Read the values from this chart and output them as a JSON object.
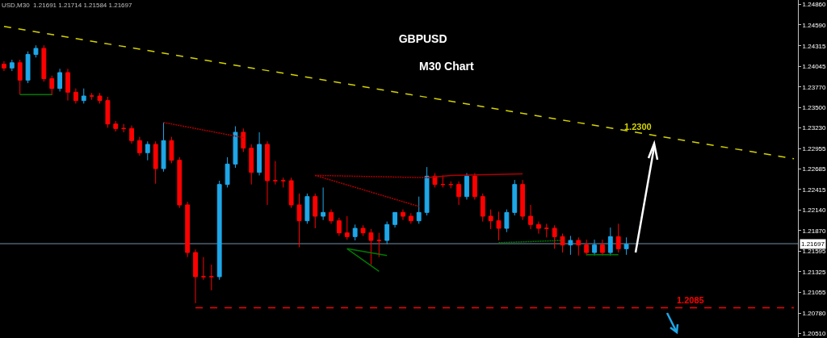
{
  "chart_data": {
    "type": "candlestick",
    "title": "GBPUSD",
    "subtitle": "M30 Chart",
    "annotations": [
      "USD,M30  1.21691 1.21714 1.21584 1.21697",
      "1.2300",
      {
        "text": "1.2085",
        "y": 1.2087
      }
    ],
    "categories": [
      null,
      null,
      null,
      null,
      null,
      null,
      null,
      null,
      null,
      null,
      null,
      null,
      null,
      null,
      null,
      null,
      null,
      null,
      null,
      null,
      null,
      null,
      null,
      null,
      null,
      null,
      null,
      null,
      null,
      null,
      null,
      null,
      null,
      null,
      null,
      null,
      null,
      null,
      null,
      null,
      null,
      null,
      null,
      null,
      null,
      null,
      null,
      null,
      null,
      null,
      null,
      null,
      null,
      null,
      null,
      null,
      null,
      null,
      null,
      null,
      null,
      null,
      null,
      null,
      null,
      null,
      null,
      null,
      null,
      null,
      null,
      null,
      null,
      null,
      null,
      null,
      null,
      null,
      null,
      null,
      null,
      null,
      null,
      null,
      null,
      null,
      null,
      null,
      null,
      null,
      null,
      null,
      null,
      null,
      null,
      null,
      null,
      null,
      null,
      null
    ],
    "colors": [
      "#ff0000",
      "#1ea7e8",
      "#ff0000",
      "#1ea7e8",
      "#1ea7e8",
      "#ff0000",
      "#ff0000",
      "#1ea7e8",
      "#ff0000",
      "#ff0000",
      "#1ea7e8",
      "#ff0000",
      "#ff0000",
      "#ff0000",
      "#ff0000",
      "#ff0000",
      "#ff0000",
      "#ff0000",
      "#1ea7e8",
      "#ff0000",
      "#1ea7e8",
      "#ff0000",
      "#ff0000",
      "#ff0000",
      "#ff0000",
      "#ff0000",
      "#ff0000",
      "#1ea7e8",
      "#1ea7e8",
      "#1ea7e8",
      "#ff0000",
      "#ff0000",
      "#1ea7e8",
      "#ff0000",
      "#ff0000",
      "#ff0000",
      "#ff0000",
      "#ff0000",
      "#1ea7e8",
      "#ff0000",
      "#1ea7e8",
      "#ff0000",
      "#ff0000",
      "#ff0000",
      "#1ea7e8",
      "#ff0000",
      "#ff0000",
      "#ff0000",
      "#1ea7e8",
      "#1ea7e8",
      "#ff0000",
      "#ff0000",
      "#1ea7e8",
      "#1ea7e8",
      "#ff0000",
      "#ff0000",
      "#ff0000",
      "#ff0000",
      "#1ea7e8",
      "#ff0000",
      "#ff0000",
      "#ff0000",
      "#ff0000",
      "#1ea7e8",
      "#1ea7e8",
      "#ff0000",
      "#ff0000",
      "#ff0000",
      "#ff0000",
      "#ff0000",
      "#ff0000",
      "#1ea7e8",
      "#ff0000",
      "#ff0000",
      "#1ea7e8",
      "#ff0000",
      "#1ea7e8",
      "#ff0000",
      "#1ea7e8",
      null,
      null,
      null,
      null,
      null,
      null,
      null,
      null,
      null,
      null,
      null,
      null,
      null,
      null,
      null,
      null,
      null,
      null,
      null,
      null,
      null
    ],
    "ohlc": [
      [
        1.2407,
        1.2411,
        1.2398,
        1.2402
      ],
      [
        1.2402,
        1.2413,
        1.2398,
        1.2409
      ],
      [
        1.2409,
        1.2413,
        1.2367,
        1.2386
      ],
      [
        1.2386,
        1.2424,
        1.2382,
        1.242
      ],
      [
        1.242,
        1.2432,
        1.2416,
        1.2428
      ],
      [
        1.2428,
        1.2432,
        1.2384,
        1.2388
      ],
      [
        1.2388,
        1.2392,
        1.2366,
        1.2375
      ],
      [
        1.2375,
        1.2401,
        1.2371,
        1.2396
      ],
      [
        1.2396,
        1.2401,
        1.2359,
        1.237
      ],
      [
        1.237,
        1.2375,
        1.2355,
        1.2359
      ],
      [
        1.2359,
        1.2375,
        1.2355,
        1.2365
      ],
      [
        1.2365,
        1.2369,
        1.236,
        1.2365
      ],
      [
        1.2365,
        1.2369,
        1.2355,
        1.2359
      ],
      [
        1.2359,
        1.2364,
        1.2323,
        1.2328
      ],
      [
        1.2328,
        1.2332,
        1.2318,
        1.2322
      ],
      [
        1.2322,
        1.2328,
        1.2317,
        1.2322
      ],
      [
        1.2322,
        1.2326,
        1.2302,
        1.2306
      ],
      [
        1.2306,
        1.2311,
        1.2286,
        1.229
      ],
      [
        1.229,
        1.2305,
        1.228,
        1.2301
      ],
      [
        1.2301,
        1.2305,
        1.2249,
        1.2269
      ],
      [
        1.2269,
        1.233,
        1.2265,
        1.2306
      ],
      [
        1.2306,
        1.2311,
        1.2276,
        1.228
      ],
      [
        1.228,
        1.2284,
        1.2217,
        1.2221
      ],
      [
        1.2221,
        1.2225,
        1.2152,
        1.2158
      ],
      [
        1.2158,
        1.2162,
        1.2091,
        1.2126
      ],
      [
        1.2126,
        1.2152,
        1.2122,
        1.2126
      ],
      [
        1.2126,
        1.2142,
        1.2108,
        1.2126
      ],
      [
        1.2126,
        1.2253,
        1.2122,
        1.2248
      ],
      [
        1.2248,
        1.2284,
        1.2244,
        1.2275
      ],
      [
        1.2275,
        1.2325,
        1.227,
        1.2317
      ],
      [
        1.2317,
        1.2322,
        1.2291,
        1.2296
      ],
      [
        1.2296,
        1.2301,
        1.2248,
        1.2264
      ],
      [
        1.2264,
        1.2317,
        1.226,
        1.2301
      ],
      [
        1.2301,
        1.2305,
        1.2221,
        1.2253
      ],
      [
        1.2253,
        1.2279,
        1.2248,
        1.2253
      ],
      [
        1.2253,
        1.2257,
        1.2244,
        1.2253
      ],
      [
        1.2253,
        1.2257,
        1.2217,
        1.2221
      ],
      [
        1.2221,
        1.2236,
        1.2165,
        1.22
      ],
      [
        1.22,
        1.2236,
        1.2196,
        1.2232
      ],
      [
        1.2232,
        1.2236,
        1.219,
        1.2206
      ],
      [
        1.2206,
        1.2244,
        1.2201,
        1.2211
      ],
      [
        1.2211,
        1.2215,
        1.2196,
        1.22
      ],
      [
        1.22,
        1.2204,
        1.218,
        1.2184
      ],
      [
        1.2184,
        1.2206,
        1.2175,
        1.2179
      ],
      [
        1.2179,
        1.2195,
        1.2174,
        1.219
      ],
      [
        1.219,
        1.2194,
        1.218,
        1.2184
      ],
      [
        1.2184,
        1.2189,
        1.2142,
        1.2174
      ],
      [
        1.2174,
        1.2184,
        1.2152,
        1.2174
      ],
      [
        1.2174,
        1.2199,
        1.2169,
        1.2195
      ],
      [
        1.2195,
        1.2211,
        1.2191,
        1.2211
      ],
      [
        1.2211,
        1.2215,
        1.2201,
        1.2206
      ],
      [
        1.2206,
        1.221,
        1.2196,
        1.22
      ],
      [
        1.22,
        1.2232,
        1.2196,
        1.2211
      ],
      [
        1.2211,
        1.2271,
        1.2207,
        1.2259
      ],
      [
        1.2259,
        1.2263,
        1.2244,
        1.2248
      ],
      [
        1.2248,
        1.226,
        1.2244,
        1.2248
      ],
      [
        1.2248,
        1.2252,
        1.2243,
        1.2248
      ],
      [
        1.2248,
        1.2252,
        1.2221,
        1.2232
      ],
      [
        1.2232,
        1.2263,
        1.2228,
        1.2259
      ],
      [
        1.2259,
        1.2263,
        1.2228,
        1.2232
      ],
      [
        1.2232,
        1.2236,
        1.2199,
        1.2206
      ],
      [
        1.2206,
        1.2215,
        1.2189,
        1.22
      ],
      [
        1.22,
        1.2212,
        1.2174,
        1.219
      ],
      [
        1.219,
        1.2215,
        1.2185,
        1.2211
      ],
      [
        1.2211,
        1.2254,
        1.2207,
        1.2248
      ],
      [
        1.2248,
        1.2254,
        1.2201,
        1.2206
      ],
      [
        1.2206,
        1.2221,
        1.2189,
        1.2195
      ],
      [
        1.2195,
        1.2199,
        1.2183,
        1.219
      ],
      [
        1.219,
        1.2196,
        1.2178,
        1.219
      ],
      [
        1.219,
        1.2194,
        1.2163,
        1.2179
      ],
      [
        1.2179,
        1.2183,
        1.2158,
        1.2168
      ],
      [
        1.2168,
        1.218,
        1.2155,
        1.2174
      ],
      [
        1.2174,
        1.2178,
        1.2154,
        1.2168
      ],
      [
        1.2168,
        1.2175,
        1.2154,
        1.2158
      ],
      [
        1.2158,
        1.2175,
        1.2154,
        1.2168
      ],
      [
        1.2168,
        1.2175,
        1.2154,
        1.2158
      ],
      [
        1.2158,
        1.2191,
        1.2154,
        1.2179
      ],
      [
        1.2179,
        1.2196,
        1.2158,
        1.2163
      ],
      [
        1.2163,
        1.2178,
        1.2155,
        1.2169
      ],
      null,
      null,
      null,
      null,
      null,
      null,
      null,
      null,
      null,
      null,
      null,
      null,
      null,
      null,
      null,
      null,
      null,
      null,
      null,
      null,
      null
    ],
    "series": [
      {
        "type": "line",
        "color": "#d4d400",
        "line_style": "dashed",
        "values": [
          1.2457,
          null,
          null,
          null,
          null,
          null,
          null,
          null,
          null,
          null,
          null,
          null,
          null,
          null,
          null,
          null,
          null,
          null,
          null,
          null,
          null,
          null,
          null,
          null,
          null,
          null,
          null,
          null,
          null,
          null,
          null,
          null,
          null,
          null,
          null,
          null,
          null,
          null,
          null,
          null,
          null,
          null,
          null,
          null,
          null,
          null,
          null,
          null,
          null,
          null,
          null,
          null,
          null,
          null,
          null,
          null,
          null,
          null,
          null,
          null,
          null,
          null,
          null,
          null,
          null,
          null,
          null,
          null,
          null,
          null,
          null,
          null,
          null,
          null,
          null,
          null,
          null,
          null,
          null,
          null,
          null,
          null,
          null,
          null,
          null,
          null,
          null,
          null,
          null,
          null,
          null,
          null,
          null,
          null,
          null,
          null,
          null,
          null,
          null,
          1.2282
        ]
      },
      {
        "type": "line",
        "color": "#ff0000",
        "line_style": "dashed",
        "values": [
          null,
          null,
          null,
          null,
          null,
          null,
          null,
          null,
          null,
          null,
          null,
          null,
          null,
          null,
          null,
          null,
          null,
          null,
          null,
          null,
          null,
          null,
          null,
          null,
          1.2085,
          null,
          null,
          null,
          null,
          null,
          null,
          null,
          null,
          null,
          null,
          null,
          null,
          null,
          null,
          null,
          null,
          null,
          null,
          null,
          null,
          null,
          null,
          null,
          null,
          null,
          null,
          null,
          null,
          null,
          null,
          null,
          null,
          null,
          null,
          null,
          null,
          null,
          null,
          null,
          null,
          null,
          null,
          null,
          null,
          null,
          null,
          null,
          null,
          null,
          null,
          null,
          null,
          null,
          null,
          null,
          null,
          null,
          null,
          null,
          null,
          null,
          null,
          null,
          null,
          null,
          null,
          null,
          null,
          null,
          null,
          null,
          null,
          null,
          null,
          1.2085
        ]
      },
      {
        "type": "line",
        "color": "#007a00",
        "line_style": "solid",
        "values": [
          null,
          null,
          1.2367,
          null,
          null,
          null,
          1.2367,
          null,
          null,
          null,
          null,
          null,
          null,
          null,
          null,
          null,
          null,
          null,
          null,
          null,
          null,
          null,
          null,
          null,
          null,
          null,
          null,
          null,
          null,
          null,
          null,
          null,
          null,
          null,
          null,
          null,
          null,
          null,
          null,
          null,
          null,
          null,
          null,
          null,
          null,
          null,
          null,
          null,
          null,
          null,
          null,
          null,
          null,
          null,
          null,
          null,
          null,
          null,
          null,
          null,
          null,
          null,
          null,
          null,
          null,
          null,
          null,
          null,
          null,
          null,
          null,
          null,
          null,
          null,
          null,
          null,
          null,
          null,
          null,
          null,
          null,
          null,
          null,
          null,
          null,
          null,
          null,
          null,
          null,
          null,
          null,
          null,
          null,
          null,
          null,
          null,
          null,
          null,
          null,
          null
        ]
      },
      {
        "type": "line",
        "color": "#b00000",
        "line_style": "dotted",
        "values": [
          null,
          null,
          null,
          null,
          null,
          null,
          null,
          null,
          null,
          null,
          null,
          null,
          null,
          null,
          null,
          null,
          null,
          null,
          null,
          null,
          1.233,
          null,
          null,
          null,
          null,
          null,
          null,
          null,
          null,
          null,
          1.231,
          null,
          null,
          null,
          null,
          null,
          null,
          null,
          null,
          null,
          null,
          null,
          null,
          null,
          null,
          null,
          null,
          null,
          null,
          null,
          null,
          null,
          null,
          null,
          null,
          null,
          null,
          null,
          null,
          null,
          null,
          null,
          null,
          null,
          null,
          null,
          null,
          null,
          null,
          null,
          null,
          null,
          null,
          null,
          null,
          null,
          null,
          null,
          null,
          null,
          null,
          null,
          null,
          null,
          null,
          null,
          null,
          null,
          null,
          null,
          null,
          null,
          null,
          null,
          null,
          null,
          null,
          null,
          null,
          null
        ]
      },
      {
        "type": "line",
        "color": "#b00000",
        "line_style": "dotted",
        "values": [
          null,
          null,
          null,
          null,
          null,
          null,
          null,
          null,
          null,
          null,
          null,
          null,
          null,
          null,
          null,
          null,
          null,
          null,
          null,
          null,
          null,
          null,
          null,
          null,
          null,
          null,
          null,
          null,
          null,
          null,
          null,
          null,
          null,
          null,
          null,
          null,
          null,
          null,
          null,
          1.226,
          null,
          null,
          null,
          null,
          null,
          null,
          null,
          null,
          null,
          null,
          null,
          null,
          null,
          1.2257,
          null,
          null,
          null,
          null,
          null,
          null,
          null,
          null,
          null,
          null,
          null,
          null,
          null,
          null,
          null,
          null,
          null,
          null,
          null,
          null,
          null,
          null,
          null,
          null,
          null,
          null,
          null,
          null,
          null,
          null,
          null,
          null,
          null,
          null,
          null,
          null,
          null,
          null,
          null,
          null,
          null,
          null,
          null,
          null,
          null,
          null
        ]
      },
      {
        "type": "line",
        "color": "#b00000",
        "line_style": "dotted",
        "values": [
          null,
          null,
          null,
          null,
          null,
          null,
          null,
          null,
          null,
          null,
          null,
          null,
          null,
          null,
          null,
          null,
          null,
          null,
          null,
          null,
          null,
          null,
          null,
          null,
          null,
          null,
          null,
          null,
          null,
          null,
          null,
          null,
          null,
          null,
          null,
          null,
          null,
          null,
          null,
          1.226,
          null,
          null,
          null,
          null,
          null,
          null,
          null,
          null,
          null,
          null,
          null,
          null,
          1.2219,
          null,
          null,
          null,
          null,
          null,
          null,
          null,
          null,
          null,
          null,
          null,
          null,
          null,
          null,
          null,
          null,
          null,
          null,
          null,
          null,
          null,
          null,
          null,
          null,
          null,
          null,
          null,
          null,
          null,
          null,
          null,
          null,
          null,
          null,
          null,
          null,
          null,
          null,
          null,
          null,
          null,
          null,
          null,
          null,
          null,
          null,
          null
        ]
      },
      {
        "type": "line",
        "color": "#b00000",
        "line_style": "solid",
        "values": [
          null,
          null,
          null,
          null,
          null,
          null,
          null,
          null,
          null,
          null,
          null,
          null,
          null,
          null,
          null,
          null,
          null,
          null,
          null,
          null,
          null,
          null,
          null,
          null,
          null,
          null,
          null,
          null,
          null,
          null,
          null,
          null,
          null,
          null,
          null,
          null,
          null,
          null,
          null,
          null,
          null,
          null,
          null,
          null,
          null,
          null,
          null,
          null,
          null,
          null,
          null,
          null,
          null,
          1.2257,
          null,
          null,
          1.226,
          null,
          null,
          null,
          null,
          null,
          null,
          null,
          null,
          1.2262,
          null,
          null,
          null,
          null,
          null,
          null,
          null,
          null,
          null,
          null,
          null,
          null,
          null,
          null,
          null,
          null,
          null,
          null,
          null,
          null,
          null,
          null,
          null,
          null,
          null,
          null,
          null,
          null,
          null,
          null,
          null,
          null,
          null,
          null
        ]
      },
      {
        "type": "line",
        "color": "#007a00",
        "line_style": "solid",
        "values": [
          null,
          null,
          null,
          null,
          null,
          null,
          null,
          null,
          null,
          null,
          null,
          null,
          null,
          null,
          null,
          null,
          null,
          null,
          null,
          null,
          null,
          null,
          null,
          null,
          null,
          null,
          null,
          null,
          null,
          null,
          null,
          null,
          null,
          null,
          null,
          null,
          null,
          null,
          null,
          null,
          null,
          null,
          null,
          1.2163,
          null,
          null,
          null,
          1.2133,
          null,
          null,
          null,
          null,
          null,
          null,
          null,
          null,
          null,
          null,
          null,
          null,
          null,
          null,
          null,
          null,
          null,
          null,
          null,
          null,
          null,
          null,
          null,
          null,
          null,
          null,
          null,
          null,
          null,
          null,
          null,
          null,
          null,
          null,
          null,
          null,
          null,
          null,
          null,
          null,
          null,
          null,
          null,
          null,
          null,
          null,
          null,
          null,
          null,
          null,
          null,
          null
        ]
      },
      {
        "type": "line",
        "color": "#007a00",
        "line_style": "solid",
        "values": [
          null,
          null,
          null,
          null,
          null,
          null,
          null,
          null,
          null,
          null,
          null,
          null,
          null,
          null,
          null,
          null,
          null,
          null,
          null,
          null,
          null,
          null,
          null,
          null,
          null,
          null,
          null,
          null,
          null,
          null,
          null,
          null,
          null,
          null,
          null,
          null,
          null,
          null,
          null,
          null,
          null,
          null,
          null,
          1.2163,
          null,
          null,
          null,
          null,
          1.2154,
          null,
          null,
          null,
          null,
          null,
          null,
          null,
          null,
          null,
          null,
          null,
          null,
          null,
          null,
          null,
          null,
          null,
          null,
          null,
          null,
          null,
          null,
          null,
          null,
          null,
          null,
          null,
          null,
          null,
          null,
          null,
          null,
          null,
          null,
          null,
          null,
          null,
          null,
          null,
          null,
          null,
          null,
          null,
          null,
          null,
          null,
          null,
          null,
          null,
          null,
          null
        ]
      },
      {
        "type": "line",
        "color": "#007a00",
        "line_style": "dotted",
        "values": [
          null,
          null,
          null,
          null,
          null,
          null,
          null,
          null,
          null,
          null,
          null,
          null,
          null,
          null,
          null,
          null,
          null,
          null,
          null,
          null,
          null,
          null,
          null,
          null,
          null,
          null,
          null,
          null,
          null,
          null,
          null,
          null,
          null,
          null,
          null,
          null,
          null,
          null,
          null,
          null,
          null,
          null,
          null,
          null,
          null,
          null,
          null,
          null,
          null,
          null,
          null,
          null,
          null,
          null,
          null,
          null,
          null,
          null,
          null,
          null,
          null,
          null,
          1.2171,
          null,
          null,
          null,
          null,
          null,
          null,
          null,
          1.2174,
          null,
          null,
          null,
          null,
          null,
          null,
          null,
          null,
          null,
          null,
          null,
          null,
          null,
          null,
          null,
          null,
          null,
          null,
          null,
          null,
          null,
          null,
          null,
          null,
          null,
          null,
          null,
          null,
          null
        ]
      },
      {
        "type": "line",
        "color": "#007a00",
        "line_style": "solid",
        "values": [
          null,
          null,
          null,
          null,
          null,
          null,
          null,
          null,
          null,
          null,
          null,
          null,
          null,
          null,
          null,
          null,
          null,
          null,
          null,
          null,
          null,
          null,
          null,
          null,
          null,
          null,
          null,
          null,
          null,
          null,
          null,
          null,
          null,
          null,
          null,
          null,
          null,
          null,
          null,
          null,
          null,
          null,
          null,
          null,
          null,
          null,
          null,
          null,
          null,
          null,
          null,
          null,
          null,
          null,
          null,
          null,
          null,
          null,
          null,
          null,
          null,
          null,
          null,
          null,
          null,
          null,
          null,
          null,
          null,
          null,
          null,
          null,
          null,
          1.2155,
          null,
          null,
          null,
          1.2155,
          null,
          null,
          null,
          null,
          null,
          null,
          null,
          null,
          null,
          null,
          null,
          null,
          null,
          null,
          null,
          null,
          null,
          null,
          null,
          null,
          null,
          null
        ]
      }
    ],
    "ref_lines": [
      {
        "axis": "y",
        "value": 1.21697,
        "label": "1.21697",
        "color": "#7890a8"
      }
    ],
    "ylim": [
      1.2046,
      1.2492
    ],
    "yticks": [
      {
        "value": 1.2486,
        "label": "1.24860"
      },
      {
        "value": 1.2459,
        "label": "1.24590"
      },
      1.24315,
      1.24045,
      {
        "value": 1.2377,
        "label": "1.23770"
      },
      {
        "value": 1.235,
        "label": "1.23500"
      },
      {
        "value": 1.2323,
        "label": "1.23230"
      },
      1.22955,
      1.22685,
      1.22415,
      {
        "value": 1.2214,
        "label": "1.22140"
      },
      {
        "value": 1.2187,
        "label": "1.21870"
      },
      1.21595,
      1.21325,
      1.21055,
      {
        "value": 1.2078,
        "label": "1.20780"
      },
      {
        "value": 1.2051,
        "label": "1.20510"
      }
    ],
    "tick_labels": "y",
    "grid": false
  }
}
